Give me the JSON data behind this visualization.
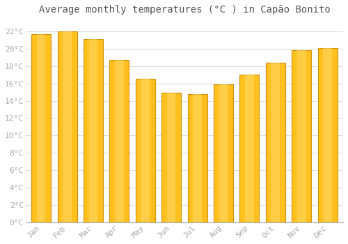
{
  "title": "Average monthly temperatures (°C ) in Capão Bonito",
  "months": [
    "Jan",
    "Feb",
    "Mar",
    "Apr",
    "May",
    "Jun",
    "Jul",
    "Aug",
    "Sep",
    "Oct",
    "Nov",
    "Dec"
  ],
  "values": [
    21.7,
    22.0,
    21.1,
    18.7,
    16.5,
    14.9,
    14.8,
    15.9,
    17.0,
    18.4,
    19.8,
    20.1
  ],
  "bar_color_main": "#FFC020",
  "bar_color_edge": "#D4900A",
  "background_color": "#FFFFFF",
  "plot_bg_color": "#FFFFFF",
  "grid_color": "#DDDDDD",
  "ytick_labels": [
    "0°C",
    "2°C",
    "4°C",
    "6°C",
    "8°C",
    "10°C",
    "12°C",
    "14°C",
    "16°C",
    "18°C",
    "20°C",
    "22°C"
  ],
  "ytick_values": [
    0,
    2,
    4,
    6,
    8,
    10,
    12,
    14,
    16,
    18,
    20,
    22
  ],
  "ylim": [
    0,
    23.5
  ],
  "title_fontsize": 10,
  "tick_fontsize": 8,
  "tick_color": "#AAAAAA",
  "title_color": "#555555",
  "font_family": "monospace",
  "bar_width": 0.75
}
